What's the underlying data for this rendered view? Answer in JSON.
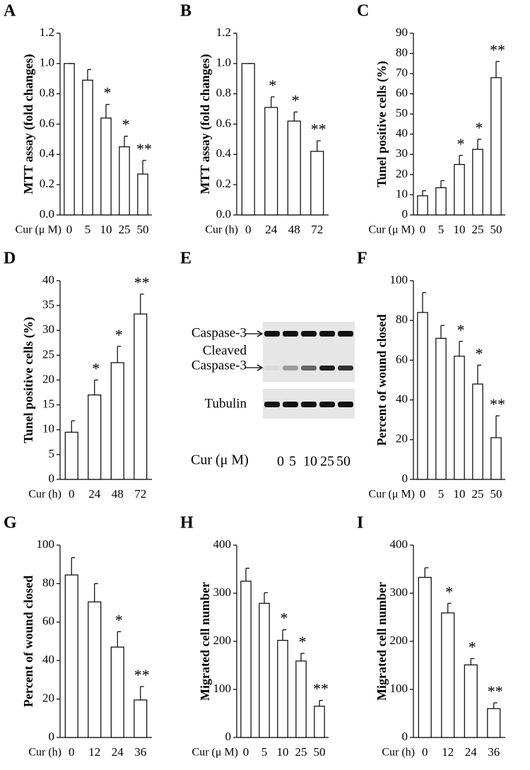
{
  "chart_data": [
    {
      "type": "bar",
      "panel": "A",
      "ylabel": "MTT assay (fold changes)",
      "xlabel": "Cur (μ M)",
      "categories": [
        "0",
        "5",
        "10",
        "25",
        "50"
      ],
      "values": [
        1.0,
        0.89,
        0.64,
        0.45,
        0.27
      ],
      "errors": [
        0,
        0.07,
        0.09,
        0.07,
        0.09
      ],
      "annotations": [
        null,
        null,
        "*",
        "*",
        "**"
      ],
      "ylim": [
        0,
        1.2
      ],
      "yticks": [
        {
          "value": 0,
          "label": "0.0"
        },
        0.2,
        0.4,
        0.6,
        0.8,
        {
          "value": 1,
          "label": "1.0"
        },
        1.2
      ],
      "color": "#ffffff"
    },
    {
      "type": "bar",
      "panel": "B",
      "ylabel": "MTT assay (fold changes)",
      "xlabel": "Cur (h)",
      "categories": [
        "0",
        "24",
        "48",
        "72"
      ],
      "values": [
        1.0,
        0.71,
        0.62,
        0.42
      ],
      "errors": [
        0,
        0.07,
        0.06,
        0.07
      ],
      "annotations": [
        null,
        "*",
        "*",
        "**"
      ],
      "ylim": [
        0,
        1.2
      ],
      "yticks": [
        {
          "value": 0,
          "label": "0.0"
        },
        0.2,
        0.4,
        0.6,
        0.8,
        {
          "value": 1,
          "label": "1.0"
        },
        1.2
      ],
      "color": "#ffffff"
    },
    {
      "type": "bar",
      "panel": "C",
      "ylabel": "Tunel positive cells (%)",
      "xlabel": "Cur (μ M)",
      "categories": [
        "0",
        "5",
        "10",
        "25",
        "50"
      ],
      "values": [
        9.5,
        13.5,
        25,
        32.5,
        68
      ],
      "errors": [
        2.5,
        3.5,
        4.5,
        5,
        8
      ],
      "annotations": [
        null,
        null,
        "*",
        "*",
        "**"
      ],
      "ylim": [
        0,
        90
      ],
      "yticks": [
        0,
        10,
        20,
        30,
        40,
        50,
        60,
        70,
        80,
        90
      ],
      "color": "#ffffff"
    },
    {
      "type": "bar",
      "panel": "D",
      "ylabel": "Tunel positive cells (%)",
      "xlabel": "Cur (h)",
      "categories": [
        "0",
        "24",
        "48",
        "72"
      ],
      "values": [
        9.5,
        17,
        23.5,
        33.3
      ],
      "errors": [
        2.3,
        3,
        3.3,
        4
      ],
      "annotations": [
        null,
        "*",
        "*",
        "**"
      ],
      "ylim": [
        0,
        40
      ],
      "yticks": [
        0,
        5,
        10,
        15,
        20,
        25,
        30,
        35,
        40
      ],
      "color": "#ffffff"
    },
    {
      "type": "blot",
      "panel": "E",
      "band_labels": [
        [
          "Caspase-3"
        ],
        [
          "Cleaved",
          "Caspase-3"
        ],
        [
          "Tubulin"
        ]
      ],
      "xlabel": "Cur (μ M)",
      "categories": [
        "0",
        "5",
        "10",
        "25",
        "50"
      ]
    },
    {
      "type": "bar",
      "panel": "F",
      "ylabel": "Percent of wound closed",
      "xlabel": "Cur (μ M)",
      "categories": [
        "0",
        "5",
        "10",
        "25",
        "50"
      ],
      "values": [
        84,
        71,
        62,
        48,
        21
      ],
      "errors": [
        10,
        6.5,
        7.5,
        9.5,
        11
      ],
      "annotations": [
        null,
        null,
        "*",
        "*",
        "**"
      ],
      "ylim": [
        0,
        100
      ],
      "yticks": [
        0,
        20,
        40,
        60,
        80,
        100
      ],
      "color": "#ffffff"
    },
    {
      "type": "bar",
      "panel": "G",
      "ylabel": "Percent of wound closed",
      "xlabel": "Cur (h)",
      "categories": [
        "0",
        "12",
        "24",
        "36"
      ],
      "values": [
        84.5,
        70.5,
        47,
        19.5
      ],
      "errors": [
        9,
        9.5,
        8,
        7
      ],
      "annotations": [
        null,
        null,
        "*",
        "**"
      ],
      "ylim": [
        0,
        100
      ],
      "yticks": [
        0,
        20,
        40,
        60,
        80,
        100
      ],
      "color": "#ffffff"
    },
    {
      "type": "bar",
      "panel": "H",
      "ylabel": "Migrated cell number",
      "xlabel": "Cur (μ M)",
      "categories": [
        "0",
        "5",
        "10",
        "25",
        "50"
      ],
      "values": [
        325,
        279,
        202,
        159,
        65
      ],
      "errors": [
        27,
        22,
        22,
        16,
        12
      ],
      "annotations": [
        null,
        null,
        "*",
        "*",
        "**"
      ],
      "ylim": [
        0,
        400
      ],
      "yticks": [
        0,
        100,
        200,
        300,
        400
      ],
      "color": "#ffffff"
    },
    {
      "type": "bar",
      "panel": "I",
      "ylabel": "Migrated cell number",
      "xlabel": "Cur (h)",
      "categories": [
        "0",
        "12",
        "24",
        "36"
      ],
      "values": [
        333,
        259,
        151,
        60
      ],
      "errors": [
        20,
        20,
        13,
        12
      ],
      "annotations": [
        null,
        "*",
        "*",
        "**"
      ],
      "ylim": [
        0,
        400
      ],
      "yticks": [
        0,
        100,
        200,
        300,
        400
      ],
      "color": "#ffffff"
    }
  ]
}
